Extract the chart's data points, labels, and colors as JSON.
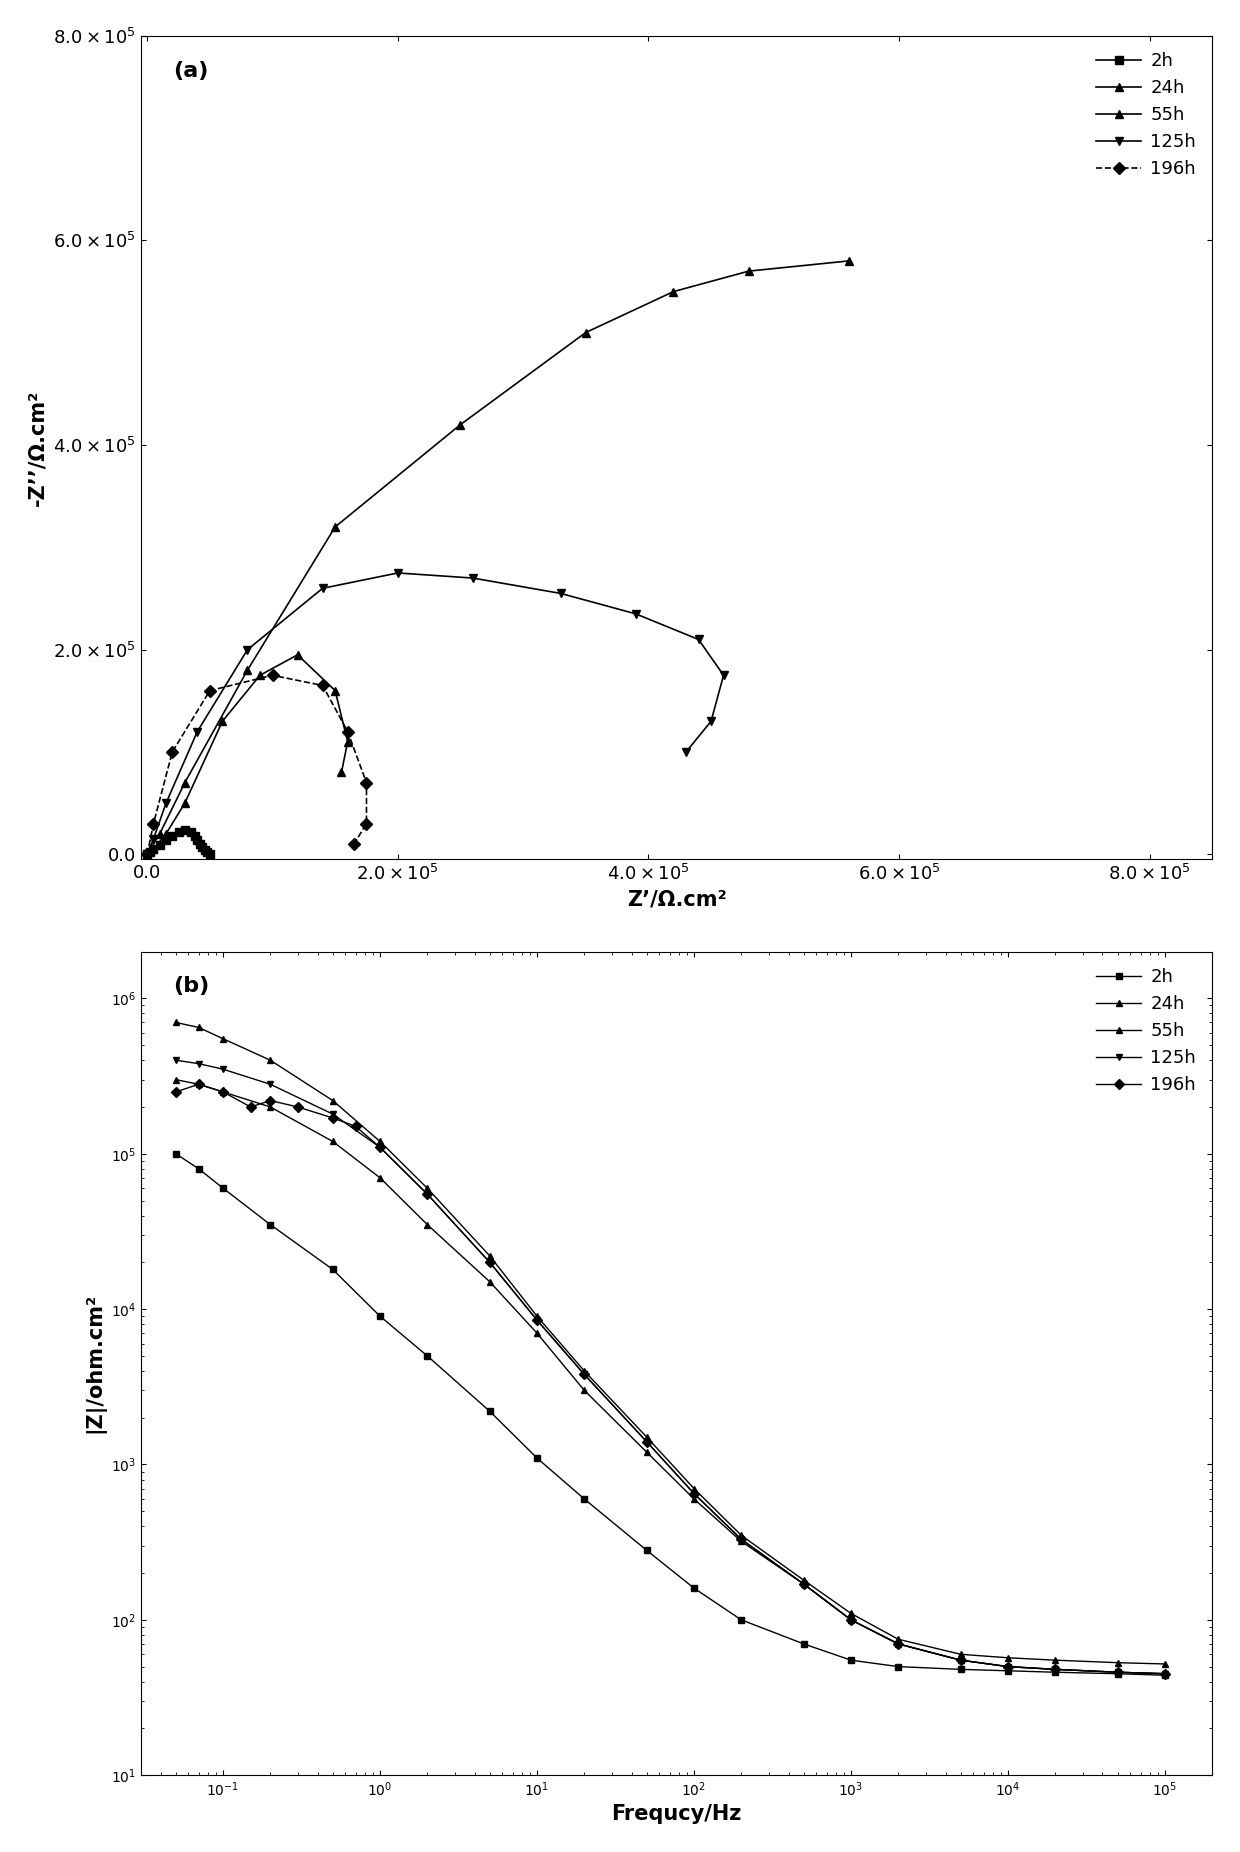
{
  "panel_a_label": "(a)",
  "panel_b_label": "(b)",
  "xlabel_a": "Z’/Ω.cm²",
  "ylabel_a": "-Z’’/Ω.cm²",
  "xlabel_b": "Frequcy/Hz",
  "ylabel_b": "|Z|/ohm.cm²",
  "legend_labels": [
    "2h",
    "24h",
    "55h",
    "125h",
    "196h"
  ],
  "markers": [
    "s",
    "^",
    "^",
    "v",
    "D"
  ],
  "linestyles_a": [
    "-",
    "-",
    "-",
    "-",
    "--"
  ],
  "xlim_a": [
    -5000.0,
    850000.0
  ],
  "ylim_a": [
    -5000.0,
    650000.0
  ],
  "xlim_b": [
    0.03,
    200000.0
  ],
  "ylim_b": [
    10,
    2000000.0
  ],
  "series_2h_x": [
    0,
    2000,
    5000,
    10000,
    15000,
    20000,
    25000,
    30000,
    35000,
    38000,
    40000,
    42000,
    44000,
    46000,
    48000,
    50000
  ],
  "series_2h_y": [
    0,
    2000,
    5000,
    9000,
    14000,
    18000,
    22000,
    24000,
    22000,
    18000,
    14000,
    10000,
    7000,
    4000,
    2000,
    500
  ],
  "series_24h_x": [
    0,
    5000,
    15000,
    30000,
    60000,
    90000,
    120000,
    150000,
    160000,
    155000
  ],
  "series_24h_y": [
    0,
    5000,
    20000,
    50000,
    130000,
    175000,
    195000,
    160000,
    110000,
    80000
  ],
  "series_55h_x": [
    0,
    10000,
    30000,
    80000,
    150000,
    250000,
    350000,
    420000,
    480000,
    560000
  ],
  "series_55h_y": [
    0,
    20000,
    70000,
    180000,
    320000,
    420000,
    510000,
    550000,
    570000,
    580000
  ],
  "series_125h_x": [
    0,
    5000,
    15000,
    40000,
    80000,
    140000,
    200000,
    260000,
    330000,
    390000,
    440000,
    460000,
    450000,
    430000
  ],
  "series_125h_y": [
    0,
    15000,
    50000,
    120000,
    200000,
    260000,
    275000,
    270000,
    255000,
    235000,
    210000,
    175000,
    130000,
    100000
  ],
  "series_196h_x": [
    0,
    5000,
    20000,
    50000,
    100000,
    140000,
    160000,
    175000,
    175000,
    165000
  ],
  "series_196h_y": [
    0,
    30000,
    100000,
    160000,
    175000,
    165000,
    120000,
    70000,
    30000,
    10000
  ],
  "b_2h_freq": [
    0.05,
    0.07,
    0.1,
    0.2,
    0.5,
    1,
    2,
    5,
    10,
    20,
    50,
    100,
    200,
    500,
    1000,
    2000,
    5000,
    10000,
    20000,
    50000,
    100000
  ],
  "b_2h_z": [
    100000.0,
    80000.0,
    60000.0,
    35000.0,
    18000.0,
    9000,
    5000,
    2200,
    1100,
    600,
    280,
    160,
    100,
    70,
    55,
    50,
    48,
    47,
    46,
    45,
    44
  ],
  "b_24h_freq": [
    0.05,
    0.07,
    0.1,
    0.2,
    0.5,
    1,
    2,
    5,
    10,
    20,
    50,
    100,
    200,
    500,
    1000,
    2000,
    5000,
    10000,
    20000,
    50000,
    100000
  ],
  "b_24h_z": [
    300000.0,
    280000.0,
    250000.0,
    200000.0,
    120000.0,
    70000.0,
    35000.0,
    15000.0,
    7000,
    3000,
    1200,
    600,
    320,
    170,
    100,
    70,
    55,
    50,
    48,
    46,
    45
  ],
  "b_55h_freq": [
    0.05,
    0.07,
    0.1,
    0.2,
    0.5,
    1,
    2,
    5,
    10,
    20,
    50,
    100,
    200,
    500,
    1000,
    2000,
    5000,
    10000,
    20000,
    50000,
    100000
  ],
  "b_55h_z": [
    700000.0,
    650000.0,
    550000.0,
    400000.0,
    220000.0,
    120000.0,
    60000.0,
    22000.0,
    9000,
    4000,
    1500,
    700,
    350,
    180,
    110,
    75,
    60,
    57,
    55,
    53,
    52
  ],
  "b_125h_freq": [
    0.05,
    0.07,
    0.1,
    0.2,
    0.5,
    1,
    2,
    5,
    10,
    20,
    50,
    100,
    200,
    500,
    1000,
    2000,
    5000,
    10000,
    20000,
    50000,
    100000
  ],
  "b_125h_z": [
    400000.0,
    380000.0,
    350000.0,
    280000.0,
    180000.0,
    110000.0,
    55000.0,
    20000.0,
    8500,
    3800,
    1400,
    650,
    330,
    170,
    100,
    70,
    55,
    50,
    48,
    46,
    45
  ],
  "b_196h_freq": [
    0.05,
    0.07,
    0.1,
    0.15,
    0.2,
    0.3,
    0.5,
    0.7,
    1,
    2,
    5,
    10,
    20,
    50,
    100,
    200,
    500,
    1000,
    2000,
    5000,
    10000,
    20000,
    50000,
    100000
  ],
  "b_196h_z": [
    250000.0,
    280000.0,
    250000.0,
    200000.0,
    220000.0,
    200000.0,
    170000.0,
    150000.0,
    110000.0,
    55000.0,
    20000.0,
    8500,
    3800,
    1400,
    650,
    330,
    170,
    100,
    70,
    55,
    50,
    48,
    46,
    45
  ]
}
